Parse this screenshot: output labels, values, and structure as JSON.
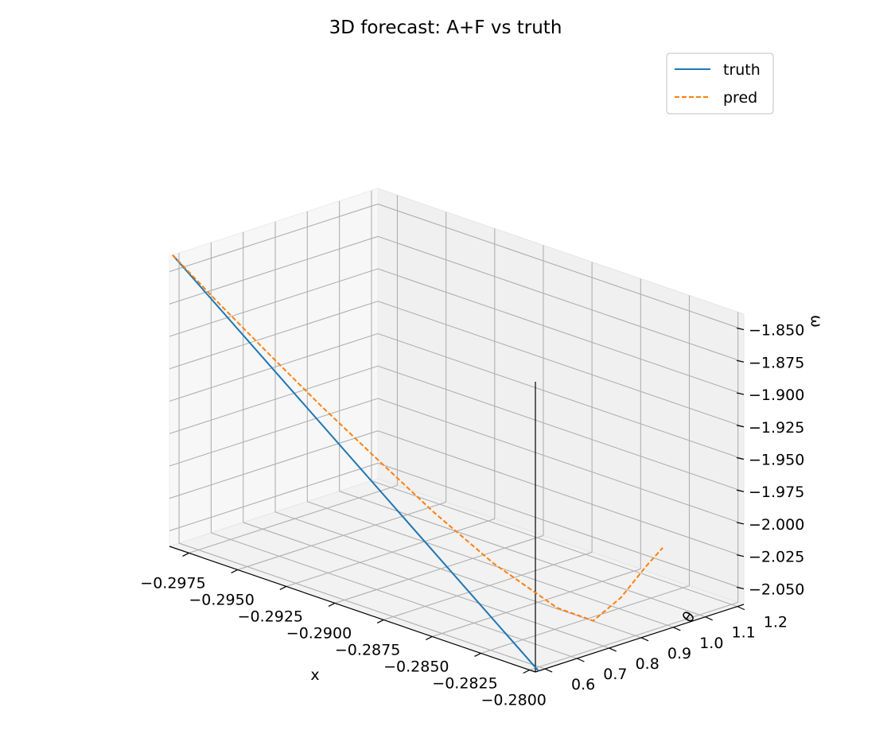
{
  "chart_data": {
    "type": "line",
    "projection": "3d",
    "title": "3D forecast: A+F vs truth",
    "xlabel": "x",
    "ylabel": "θ",
    "zlabel": "ω",
    "x_ticks": [
      "−0.2975",
      "−0.2950",
      "−0.2925",
      "−0.2900",
      "−0.2875",
      "−0.2850",
      "−0.2825",
      "−0.2800"
    ],
    "y_ticks": [
      "0.6",
      "0.7",
      "0.8",
      "0.9",
      "1.0",
      "1.1",
      "1.2"
    ],
    "z_ticks": [
      "−1.850",
      "−1.875",
      "−1.900",
      "−1.925",
      "−1.950",
      "−1.975",
      "−2.000",
      "−2.025",
      "−2.050"
    ],
    "xlim": [
      -0.2985,
      -0.2797
    ],
    "ylim": [
      0.57,
      1.22
    ],
    "zlim": [
      -2.062,
      -1.838
    ],
    "grid": true,
    "legend_position": "top-right",
    "series": [
      {
        "name": "truth",
        "color": "#1f77b4",
        "dash": "solid",
        "x": [
          -0.2985,
          -0.2797
        ],
        "y": [
          0.58,
          0.58
        ],
        "z": [
          -1.838,
          -2.062
        ]
      },
      {
        "name": "pred",
        "color": "#ff7f0e",
        "dash": "dashed",
        "x": [
          -0.2985,
          -0.2963,
          -0.2941,
          -0.2919,
          -0.2897,
          -0.2875,
          -0.2853,
          -0.2831,
          -0.282,
          -0.2814,
          -0.281,
          -0.2809
        ],
        "y": [
          0.58,
          0.591,
          0.612,
          0.641,
          0.679,
          0.725,
          0.78,
          0.844,
          0.89,
          0.94,
          0.995,
          1.04
        ],
        "z": [
          -1.838,
          -1.8649,
          -1.894,
          -1.925,
          -1.957,
          -1.991,
          -2.024,
          -2.052,
          -2.06,
          -2.043,
          -2.021,
          -2.01
        ]
      }
    ]
  }
}
